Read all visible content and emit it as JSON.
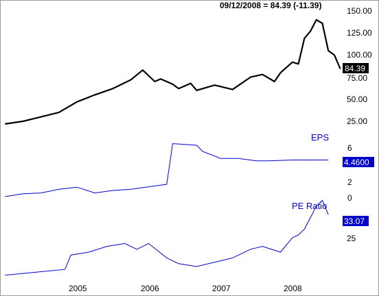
{
  "header": "09/12/2008 = 84.39 (-11.39)",
  "chart_data": [
    {
      "type": "line",
      "title": "",
      "series": [
        {
          "x": [
            "2004-01",
            "2004-04",
            "2004-07",
            "2004-10",
            "2005-01",
            "2005-04",
            "2005-07",
            "2005-10",
            "2005-12",
            "2006-02",
            "2006-03",
            "2006-05",
            "2006-06",
            "2006-08",
            "2006-09",
            "2006-12",
            "2007-03",
            "2007-06",
            "2007-08",
            "2007-10",
            "2007-11",
            "2008-01",
            "2008-02",
            "2008-03",
            "2008-04",
            "2008-05",
            "2008-06",
            "2008-07",
            "2008-08",
            "2008-09"
          ],
          "values": [
            22,
            25,
            30,
            35,
            47,
            55,
            62,
            72,
            83,
            70,
            73,
            67,
            62,
            68,
            60,
            66,
            61,
            75,
            78,
            70,
            80,
            92,
            90,
            119,
            127,
            140,
            136,
            105,
            100,
            84.39
          ],
          "color": "#000000"
        }
      ],
      "ylim": [
        15,
        155
      ],
      "ticks": [
        "150.00",
        "125.00",
        "100.00",
        "75.00",
        "50.00",
        "25.00"
      ],
      "last_value_label": "84.39"
    },
    {
      "type": "line",
      "title": "EPS",
      "series": [
        {
          "x": [
            "2004-01",
            "2004-04",
            "2004-07",
            "2004-10",
            "2005-01",
            "2005-04",
            "2005-07",
            "2005-10",
            "2006-01",
            "2006-04",
            "2006-05",
            "2006-09",
            "2006-10",
            "2007-01",
            "2007-04",
            "2007-07",
            "2007-09",
            "2008-01",
            "2008-05",
            "2008-07"
          ],
          "values": [
            0.0,
            0.35,
            0.45,
            0.9,
            1.15,
            0.45,
            0.75,
            0.9,
            1.2,
            1.5,
            6.45,
            6.25,
            5.5,
            4.65,
            4.65,
            4.35,
            4.35,
            4.46,
            4.46,
            4.46
          ],
          "color": "#0000cc"
        }
      ],
      "ticks": [
        "6",
        "4",
        "2",
        "0"
      ],
      "last_value_label": "4.4600"
    },
    {
      "type": "line",
      "title": "PE Ratio",
      "series": [
        {
          "x": [
            "2004-01",
            "2004-06",
            "2004-11",
            "2004-12",
            "2005-03",
            "2005-06",
            "2005-09",
            "2005-11",
            "2006-01",
            "2006-04",
            "2006-06",
            "2006-09",
            "2007-03",
            "2007-06",
            "2007-08",
            "2007-11",
            "2008-01",
            "2008-02",
            "2008-03",
            "2008-04",
            "2008-05",
            "2008-06",
            "2008-07"
          ],
          "values": [
            12,
            13,
            14,
            19,
            20,
            22,
            23,
            21,
            23,
            18,
            16,
            15,
            18,
            21,
            22,
            20,
            25,
            26,
            28,
            32,
            36,
            38,
            33.07
          ],
          "color": "#0000cc"
        }
      ],
      "ticks": [
        "25"
      ],
      "last_value_label": "33.07"
    }
  ],
  "x_axis_labels": [
    "2005",
    "2006",
    "2007",
    "2008"
  ]
}
